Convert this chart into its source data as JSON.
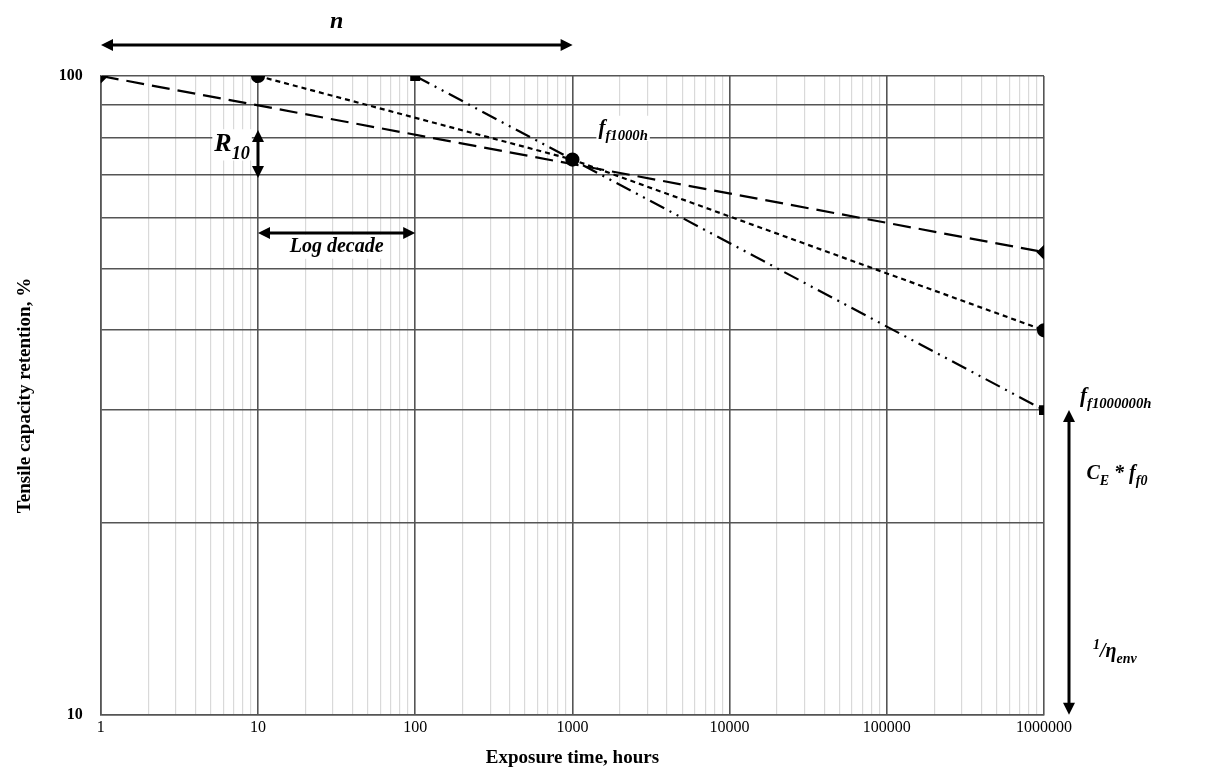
{
  "chart_data": {
    "type": "line",
    "xlabel": "Exposure time, hours",
    "ylabel": "Tensile capacity retention, %",
    "log": "xy",
    "grid": true,
    "legend": false,
    "xlim": [
      1,
      1000000
    ],
    "ylim": [
      10,
      100
    ],
    "xticks": [
      1,
      {
        "value": 2,
        "label": null
      },
      {
        "value": 3,
        "label": null
      },
      {
        "value": 4,
        "label": null
      },
      {
        "value": 5,
        "label": null
      },
      {
        "value": 6,
        "label": null
      },
      {
        "value": 7,
        "label": null
      },
      {
        "value": 8,
        "label": null
      },
      {
        "value": 9,
        "label": null
      },
      10,
      {
        "value": 20,
        "label": null
      },
      {
        "value": 30,
        "label": null
      },
      {
        "value": 40,
        "label": null
      },
      {
        "value": 50,
        "label": null
      },
      {
        "value": 60,
        "label": null
      },
      {
        "value": 70,
        "label": null
      },
      {
        "value": 80,
        "label": null
      },
      {
        "value": 90,
        "label": null
      },
      100,
      {
        "value": 200,
        "label": null
      },
      {
        "value": 300,
        "label": null
      },
      {
        "value": 400,
        "label": null
      },
      {
        "value": 500,
        "label": null
      },
      {
        "value": 600,
        "label": null
      },
      {
        "value": 700,
        "label": null
      },
      {
        "value": 800,
        "label": null
      },
      {
        "value": 900,
        "label": null
      },
      1000,
      {
        "value": 2000,
        "label": null
      },
      {
        "value": 3000,
        "label": null
      },
      {
        "value": 4000,
        "label": null
      },
      {
        "value": 5000,
        "label": null
      },
      {
        "value": 6000,
        "label": null
      },
      {
        "value": 7000,
        "label": null
      },
      {
        "value": 8000,
        "label": null
      },
      {
        "value": 9000,
        "label": null
      },
      10000,
      {
        "value": 20000,
        "label": null
      },
      {
        "value": 30000,
        "label": null
      },
      {
        "value": 40000,
        "label": null
      },
      {
        "value": 50000,
        "label": null
      },
      {
        "value": 60000,
        "label": null
      },
      {
        "value": 70000,
        "label": null
      },
      {
        "value": 80000,
        "label": null
      },
      {
        "value": 90000,
        "label": null
      },
      100000,
      {
        "value": 200000,
        "label": null
      },
      {
        "value": 300000,
        "label": null
      },
      {
        "value": 400000,
        "label": null
      },
      {
        "value": 500000,
        "label": null
      },
      {
        "value": 600000,
        "label": null
      },
      {
        "value": 700000,
        "label": null
      },
      {
        "value": 800000,
        "label": null
      },
      {
        "value": 900000,
        "label": null
      },
      1000000
    ],
    "yticks": [
      10,
      {
        "value": 20,
        "label": null
      },
      {
        "value": 30,
        "label": null
      },
      {
        "value": 40,
        "label": null
      },
      {
        "value": 50,
        "label": null
      },
      {
        "value": 60,
        "label": null
      },
      {
        "value": 70,
        "label": null
      },
      {
        "value": 80,
        "label": null
      },
      {
        "value": 90,
        "label": null
      },
      100
    ],
    "series": [
      {
        "color": "#000000",
        "marker": "diamond",
        "line_style": "dashed",
        "x": [
          1,
          1000000
        ],
        "values": [
          100,
          53
        ]
      },
      {
        "color": "#000000",
        "marker": "circle",
        "line_style": "dotted",
        "x": [
          10,
          1000,
          1000000
        ],
        "values": [
          100,
          74,
          40
        ]
      },
      {
        "color": "#000000",
        "marker": "square",
        "line_style": "dashdot",
        "x": [
          100,
          1000000
        ],
        "values": [
          100,
          30
        ]
      }
    ],
    "annotations": [
      "n",
      "R$_{10}$",
      "Log decade",
      {
        "text": "f$_{f1000h}$",
        "x": 1000,
        "y": 74
      },
      {
        "text": "f$_{f1000000h}$",
        "x": 1000000,
        "y": 30
      },
      "C$_{E}$ * f$_{f0}$",
      "$^{1}$/η$_{env}$"
    ]
  }
}
